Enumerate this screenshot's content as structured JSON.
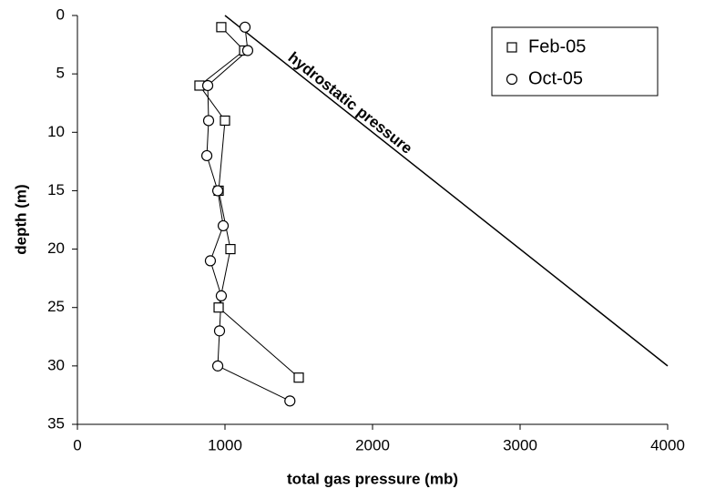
{
  "chart_data": {
    "type": "line",
    "x_label": "total gas pressure (mb)",
    "y_label": "depth (m)",
    "xlim": [
      0,
      4000
    ],
    "xticks": [
      0,
      1000,
      2000,
      3000,
      4000
    ],
    "ylim": [
      0,
      35
    ],
    "yticks": [
      0,
      5,
      10,
      15,
      20,
      25,
      30,
      35
    ],
    "y_inverted": true,
    "legend": "upper right",
    "series": [
      {
        "name": "Feb-05",
        "marker": "square",
        "color": "#000000",
        "x": [
          975,
          1130,
          827,
          1000,
          957,
          1037,
          957,
          1500
        ],
        "values": [
          1,
          3,
          6,
          9,
          15,
          20,
          25,
          31
        ]
      },
      {
        "name": "Oct-05",
        "marker": "circle",
        "color": "#000000",
        "x": [
          1136,
          1154,
          883,
          889,
          877,
          951,
          988,
          901,
          975,
          963,
          951,
          1440
        ],
        "values": [
          1,
          3,
          6,
          9,
          12,
          15,
          18,
          21,
          24,
          27,
          30,
          33
        ]
      }
    ],
    "reference_line": {
      "label": "hydrostatic pressure",
      "x": [
        1000,
        4000
      ],
      "values": [
        0,
        30
      ]
    }
  }
}
